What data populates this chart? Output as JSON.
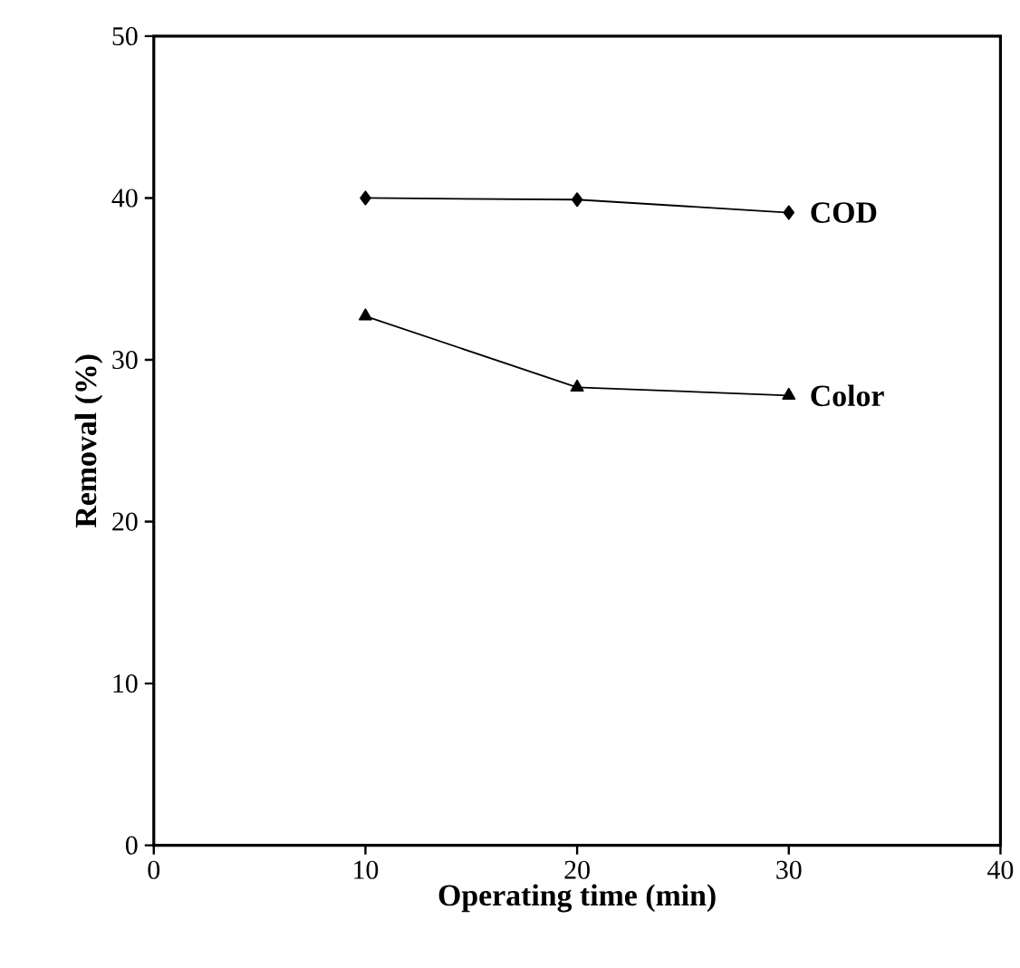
{
  "chart_data": {
    "type": "line",
    "xlabel": "Operating time (min)",
    "ylabel": "Removal (%)",
    "x": [
      10,
      20,
      30
    ],
    "series": [
      {
        "name": "COD",
        "color": "#000000",
        "marker": "diamond",
        "values": [
          40.0,
          39.9,
          39.1
        ]
      },
      {
        "name": "Color",
        "color": "#000000",
        "marker": "triangle",
        "values": [
          32.7,
          28.3,
          27.8
        ]
      }
    ],
    "xlim": [
      0,
      40
    ],
    "xticks": [
      0,
      10,
      20,
      30,
      40
    ],
    "ylim": [
      0,
      50
    ],
    "yticks": [
      0,
      10,
      20,
      30,
      40,
      50
    ],
    "grid": false,
    "line_style": "solid"
  }
}
